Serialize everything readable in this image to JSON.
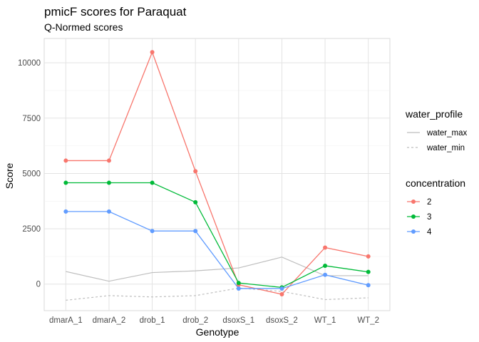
{
  "chart_data": {
    "type": "line",
    "title": "pmicF scores for Paraquat",
    "subtitle": "Q-Normed scores",
    "xlabel": "Genotype",
    "ylabel": "Score",
    "categories": [
      "dmarA_1",
      "dmarA_2",
      "drob_1",
      "drob_2",
      "dsoxS_1",
      "dsoxS_2",
      "WT_1",
      "WT_2"
    ],
    "ylim": [
      -1200,
      11100
    ],
    "yticks": [
      0,
      2500,
      5000,
      7500,
      10000
    ],
    "grid": true,
    "legend_placement": "right",
    "series": [
      {
        "name": "2",
        "color": "#F8766D",
        "values": [
          5580,
          5580,
          10480,
          5100,
          -30,
          -460,
          1650,
          1250
        ]
      },
      {
        "name": "3",
        "color": "#00BA38",
        "values": [
          4580,
          4580,
          4580,
          3700,
          50,
          -150,
          830,
          550
        ]
      },
      {
        "name": "4",
        "color": "#619CFF",
        "values": [
          3280,
          3280,
          2400,
          2400,
          -200,
          -200,
          420,
          -50
        ]
      }
    ],
    "reference_lines": [
      {
        "name": "water_max",
        "style": "solid",
        "color": "#BEBEBE",
        "values": [
          570,
          130,
          520,
          600,
          730,
          1220,
          380,
          380
        ]
      },
      {
        "name": "water_min",
        "style": "dashed",
        "color": "#BEBEBE",
        "values": [
          -730,
          -520,
          -580,
          -520,
          -180,
          -330,
          -700,
          -620
        ]
      }
    ],
    "legends": [
      {
        "title": "water_profile",
        "entries": [
          "water_max",
          "water_min"
        ]
      },
      {
        "title": "concentration",
        "entries": [
          "2",
          "3",
          "4"
        ]
      }
    ]
  }
}
